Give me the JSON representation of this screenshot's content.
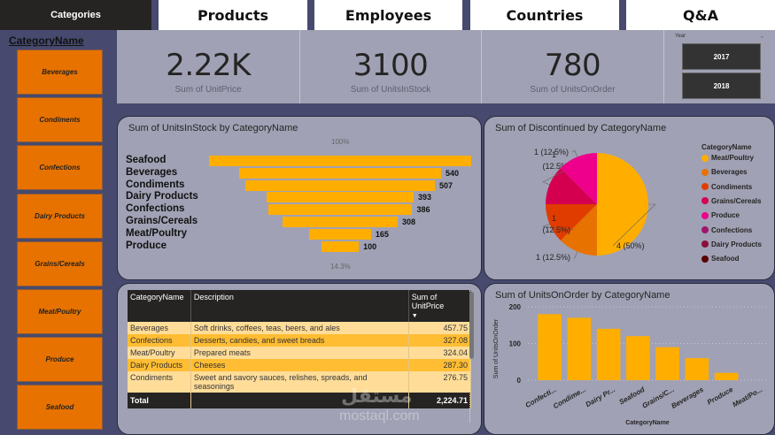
{
  "nav": {
    "active": "Categories",
    "tabs": [
      "Products",
      "Employees",
      "Countries",
      "Q&A"
    ]
  },
  "sidebar": {
    "title": "CategoryName",
    "items": [
      "Beverages",
      "Condiments",
      "Confections",
      "Dairy Products",
      "Grains/Cereals",
      "Meat/Poultry",
      "Produce",
      "Seafood"
    ]
  },
  "kpis": [
    {
      "value": "2.22K",
      "label": "Sum of UnitPrice"
    },
    {
      "value": "3100",
      "label": "Sum of UnitsInStock"
    },
    {
      "value": "780",
      "label": "Sum of UnitsOnOrder"
    }
  ],
  "year_slicer": {
    "label": "Year",
    "options": [
      "2017",
      "2018"
    ]
  },
  "colors": {
    "accent": "#ffae00",
    "slicer_orange": "#e87200",
    "panel_bg": "#a0a1b4",
    "page_bg": "#474a6e"
  },
  "chart_data": [
    {
      "type": "bar",
      "subtype": "funnel",
      "title": "Sum of UnitsInStock by CategoryName",
      "categories": [
        "Seafood",
        "Beverages",
        "Condiments",
        "Dairy Products",
        "Confections",
        "Grains/Cereals",
        "Meat/Poultry",
        "Produce"
      ],
      "values": [
        701,
        540,
        507,
        393,
        386,
        308,
        165,
        100
      ],
      "data_labels": [
        "",
        "540",
        "507",
        "393",
        "386",
        "308",
        "165",
        "100"
      ],
      "top_pct_label": "100%",
      "bottom_pct_label": "14.3%"
    },
    {
      "type": "pie",
      "title": "Sum of Discontinued by CategoryName",
      "legend_title": "CategoryName",
      "legend_position": "right",
      "legend": [
        {
          "name": "Meat/Poultry",
          "color": "#ffae00"
        },
        {
          "name": "Beverages",
          "color": "#e87200"
        },
        {
          "name": "Condiments",
          "color": "#e03c00"
        },
        {
          "name": "Grains/Cereals",
          "color": "#d4004f"
        },
        {
          "name": "Produce",
          "color": "#ee008c"
        },
        {
          "name": "Confections",
          "color": "#a0166a"
        },
        {
          "name": "Dairy Products",
          "color": "#8a0f3a"
        },
        {
          "name": "Seafood",
          "color": "#5a0000"
        }
      ],
      "slices": [
        {
          "name": "Meat/Poultry",
          "value": 4,
          "label": "4 (50%)",
          "color": "#ffae00"
        },
        {
          "name": "Beverages",
          "value": 1,
          "label": "1 (12.5%)",
          "color": "#e87200"
        },
        {
          "name": "Condiments",
          "value": 1,
          "label": "1\n(12.5%)",
          "color": "#e03c00"
        },
        {
          "name": "Grains/Cereals",
          "value": 1,
          "label": "1\n(12.5%)",
          "color": "#d4004f"
        },
        {
          "name": "Produce",
          "value": 1,
          "label": "1 (12.5%)",
          "color": "#ee008c"
        }
      ]
    },
    {
      "type": "bar",
      "title": "Sum of UnitsOnOrder by CategoryName",
      "xlabel": "CategoryName",
      "ylabel": "Sum of UnitsOnOrder",
      "categories": [
        "Confecti...",
        "Condime...",
        "Dairy Pr...",
        "Seafood",
        "Grains/C...",
        "Beverages",
        "Produce",
        "Meat/Po..."
      ],
      "values": [
        180,
        170,
        140,
        120,
        90,
        60,
        20,
        0
      ],
      "ylim": [
        0,
        200
      ],
      "yticks": [
        "0",
        "100",
        "200"
      ],
      "grid": true
    }
  ],
  "table": {
    "headers": [
      "CategoryName",
      "Description",
      "Sum of UnitPrice"
    ],
    "sort_indicator": "▼",
    "rows": [
      {
        "category": "Beverages",
        "description": "Soft drinks, coffees, teas, beers, and ales",
        "value": "457.75"
      },
      {
        "category": "Confections",
        "description": "Desserts, candies, and sweet breads",
        "value": "327.08"
      },
      {
        "category": "Meat/Poultry",
        "description": "Prepared meats",
        "value": "324.04"
      },
      {
        "category": "Dairy Products",
        "description": "Cheeses",
        "value": "287.30"
      },
      {
        "category": "Condiments",
        "description": "Sweet and savory sauces, relishes, spreads, and seasonings",
        "value": "276.75"
      }
    ],
    "total_label": "Total",
    "total_value": "2,224.71"
  },
  "watermark": {
    "arabic": "مستقل",
    "latin": "mostaql.com"
  }
}
